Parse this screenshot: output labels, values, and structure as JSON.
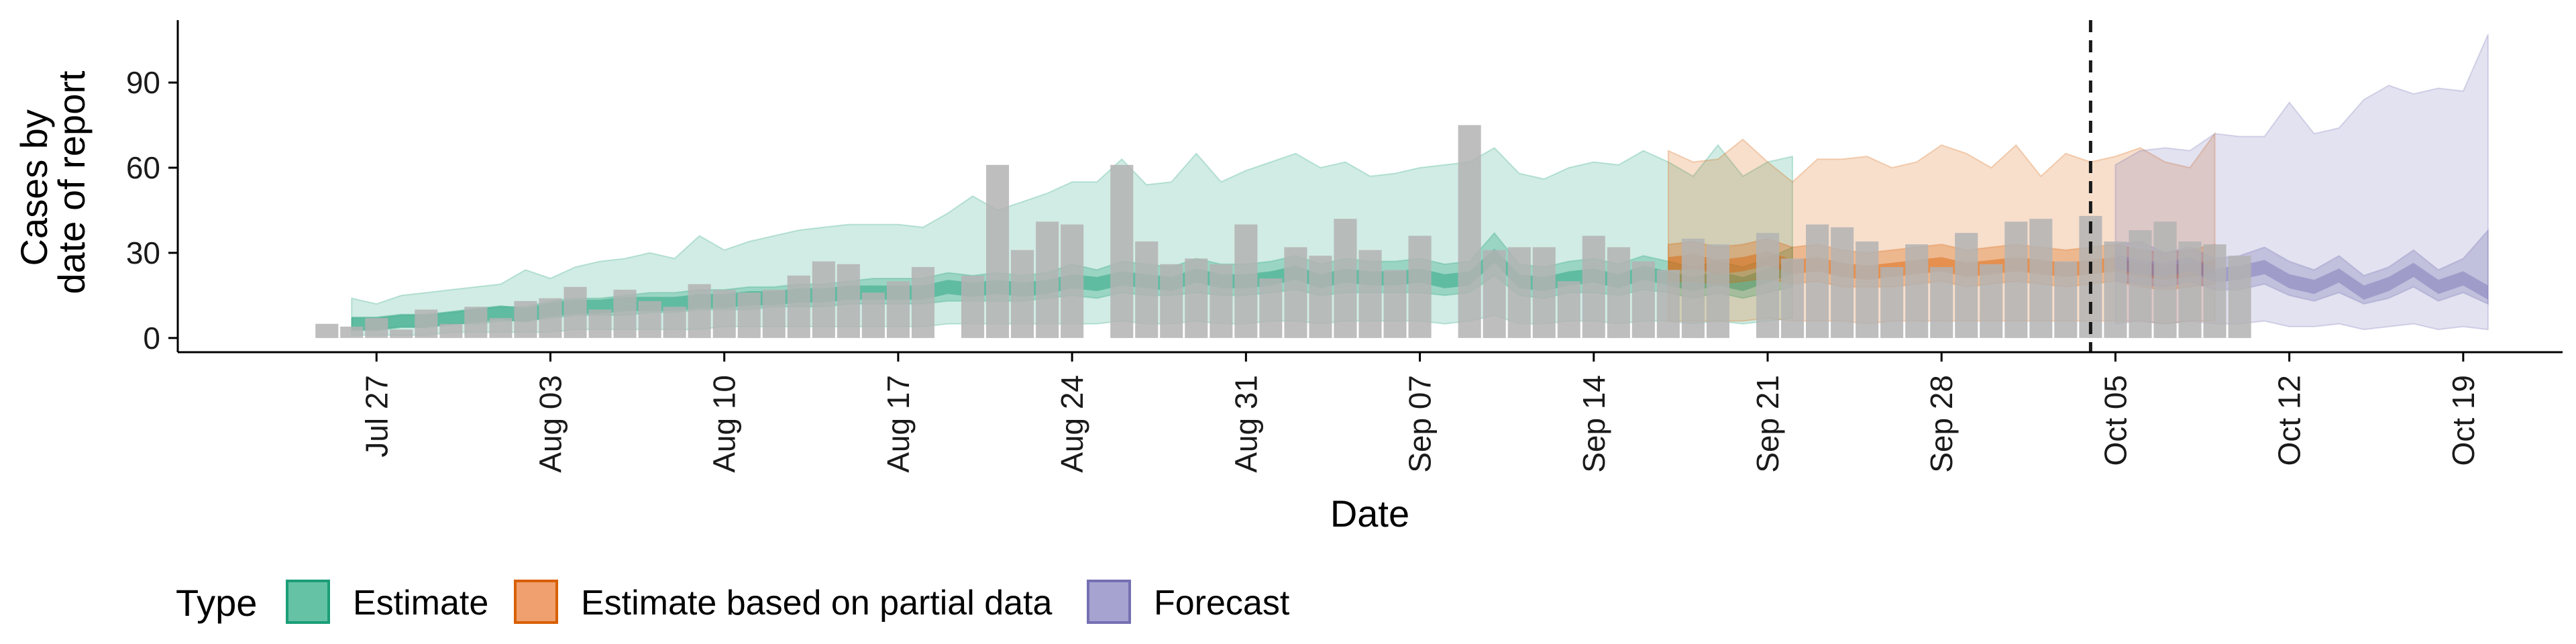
{
  "chart_data": {
    "type": "bar",
    "xlabel": "Date",
    "ylabel": [
      "Cases by",
      "date of report"
    ],
    "y_ticks": [
      0,
      30,
      60,
      90
    ],
    "ylim": [
      -5,
      112
    ],
    "xlim": [
      "2020-07-19",
      "2020-10-23"
    ],
    "x_ticks": [
      {
        "date": "2020-07-27",
        "label": "Jul 27"
      },
      {
        "date": "2020-08-03",
        "label": "Aug 03"
      },
      {
        "date": "2020-08-10",
        "label": "Aug 10"
      },
      {
        "date": "2020-08-17",
        "label": "Aug 17"
      },
      {
        "date": "2020-08-24",
        "label": "Aug 24"
      },
      {
        "date": "2020-08-31",
        "label": "Aug 31"
      },
      {
        "date": "2020-09-07",
        "label": "Sep 07"
      },
      {
        "date": "2020-09-14",
        "label": "Sep 14"
      },
      {
        "date": "2020-09-21",
        "label": "Sep 21"
      },
      {
        "date": "2020-09-28",
        "label": "Sep 28"
      },
      {
        "date": "2020-10-05",
        "label": "Oct 05"
      },
      {
        "date": "2020-10-12",
        "label": "Oct 12"
      },
      {
        "date": "2020-10-19",
        "label": "Oct 19"
      }
    ],
    "vline_date": "2020-10-04",
    "grid": false,
    "legend": {
      "placement": "bottom",
      "title": "Type",
      "items": [
        {
          "label": "Estimate",
          "fill": "#66c2a5",
          "stroke": "#1b9e77"
        },
        {
          "label": "Estimate based on partial data",
          "fill": "#f0a06e",
          "stroke": "#d95f02"
        },
        {
          "label": "Forecast",
          "fill": "#a6a3d0",
          "stroke": "#7570b3"
        }
      ]
    },
    "colors": {
      "bars": "#b3b3b3",
      "estimate": "#1b9e77",
      "partial": "#d95f02",
      "forecast": "#7570b3",
      "vline": "#1a1a1a"
    },
    "reported_cases": {
      "start_date": "2020-07-25",
      "values": [
        5,
        4,
        7,
        3,
        10,
        5,
        11,
        7,
        13,
        14,
        18,
        10,
        17,
        13,
        11,
        19,
        17,
        16,
        17,
        22,
        27,
        26,
        16,
        20,
        25,
        0,
        22,
        61,
        31,
        41,
        40,
        0,
        61,
        34,
        26,
        28,
        26,
        40,
        21,
        32,
        29,
        42,
        31,
        24,
        36,
        0,
        75,
        31,
        32,
        32,
        20,
        36,
        32,
        27,
        24,
        35,
        33,
        0,
        37,
        28,
        40,
        39,
        34,
        25,
        33,
        25,
        37,
        26,
        41,
        42,
        27,
        43,
        34,
        38,
        41,
        34,
        33,
        29
      ]
    },
    "estimate": {
      "start_date": "2020-07-26",
      "median": [
        5,
        5,
        6,
        6,
        7,
        8,
        9,
        8,
        10,
        11,
        11,
        12,
        12,
        12,
        13,
        13,
        14,
        14,
        15,
        15,
        16,
        16,
        16,
        16,
        18,
        17,
        18,
        17,
        18,
        20,
        19,
        21,
        20,
        19,
        22,
        20,
        20,
        21,
        23,
        20,
        22,
        21,
        21,
        22,
        20,
        21,
        29,
        20,
        19,
        21,
        22,
        20,
        23,
        21,
        19,
        21,
        19,
        22,
        25
      ],
      "lower50": [
        3,
        3,
        4,
        4,
        5,
        5,
        6,
        6,
        7,
        8,
        8,
        8,
        9,
        9,
        10,
        10,
        10,
        11,
        11,
        11,
        12,
        12,
        12,
        12,
        13,
        13,
        13,
        13,
        14,
        15,
        14,
        16,
        15,
        15,
        16,
        15,
        15,
        16,
        17,
        15,
        16,
        16,
        16,
        16,
        15,
        16,
        22,
        15,
        14,
        16,
        16,
        15,
        17,
        16,
        14,
        16,
        14,
        16,
        18
      ],
      "upper50": [
        7,
        7,
        8,
        8,
        9,
        10,
        11,
        11,
        13,
        14,
        14,
        15,
        16,
        16,
        17,
        17,
        18,
        18,
        19,
        19,
        20,
        21,
        21,
        21,
        23,
        22,
        23,
        22,
        23,
        26,
        24,
        27,
        26,
        25,
        28,
        26,
        26,
        27,
        29,
        26,
        28,
        27,
        27,
        28,
        26,
        27,
        37,
        26,
        25,
        27,
        28,
        26,
        29,
        27,
        25,
        27,
        25,
        28,
        32
      ],
      "lower90": [
        1,
        1,
        1,
        1,
        2,
        2,
        2,
        2,
        2,
        3,
        3,
        3,
        3,
        3,
        3,
        4,
        4,
        4,
        4,
        4,
        4,
        4,
        4,
        4,
        5,
        5,
        5,
        5,
        5,
        5,
        5,
        6,
        5,
        5,
        6,
        5,
        5,
        6,
        6,
        5,
        6,
        6,
        6,
        6,
        5,
        6,
        8,
        5,
        5,
        6,
        6,
        5,
        6,
        6,
        5,
        6,
        5,
        6,
        7
      ],
      "upper90": [
        14,
        12,
        15,
        16,
        17,
        18,
        19,
        24,
        21,
        25,
        27,
        28,
        30,
        28,
        36,
        31,
        34,
        36,
        38,
        39,
        40,
        40,
        40,
        39,
        44,
        50,
        45,
        48,
        51,
        55,
        55,
        63,
        54,
        55,
        65,
        55,
        59,
        62,
        65,
        60,
        62,
        57,
        58,
        60,
        61,
        62,
        67,
        58,
        56,
        60,
        62,
        61,
        66,
        62,
        57,
        68,
        57,
        62,
        64
      ]
    },
    "partial": {
      "start_date": "2020-09-17",
      "median": [
        26,
        27,
        25,
        26,
        28,
        25,
        26,
        24,
        23,
        24,
        25,
        26,
        24,
        25,
        26,
        25,
        24,
        25,
        26,
        24,
        23,
        24,
        25
      ],
      "lower50": [
        20,
        20,
        19,
        20,
        21,
        19,
        20,
        18,
        18,
        18,
        19,
        20,
        18,
        19,
        20,
        19,
        18,
        19,
        20,
        18,
        17,
        18,
        19
      ],
      "upper50": [
        33,
        34,
        32,
        33,
        35,
        32,
        33,
        31,
        30,
        31,
        32,
        33,
        31,
        32,
        33,
        32,
        31,
        32,
        33,
        31,
        30,
        31,
        33
      ],
      "lower90": [
        6,
        6,
        6,
        6,
        7,
        6,
        6,
        6,
        5,
        6,
        6,
        6,
        6,
        6,
        6,
        6,
        6,
        6,
        6,
        6,
        5,
        6,
        6
      ],
      "upper90": [
        66,
        62,
        63,
        70,
        62,
        55,
        63,
        63,
        64,
        60,
        62,
        68,
        65,
        60,
        68,
        57,
        65,
        62,
        64,
        67,
        62,
        60,
        72
      ]
    },
    "forecast": {
      "start_date": "2020-10-05",
      "median": [
        27,
        25,
        24,
        26,
        22,
        23,
        25,
        20,
        18,
        22,
        16,
        19,
        24,
        18,
        21,
        16
      ],
      "lower50": [
        20,
        19,
        18,
        20,
        17,
        17,
        19,
        15,
        13,
        16,
        12,
        14,
        18,
        13,
        16,
        12
      ],
      "upper50": [
        33,
        34,
        30,
        32,
        28,
        29,
        32,
        27,
        24,
        29,
        22,
        25,
        31,
        24,
        28,
        38
      ],
      "lower90": [
        5,
        6,
        5,
        6,
        5,
        5,
        6,
        4,
        4,
        5,
        3,
        4,
        5,
        3,
        4,
        3
      ],
      "upper90": [
        61,
        66,
        67,
        66,
        72,
        71,
        71,
        83,
        72,
        74,
        84,
        89,
        86,
        88,
        87,
        107
      ]
    }
  }
}
